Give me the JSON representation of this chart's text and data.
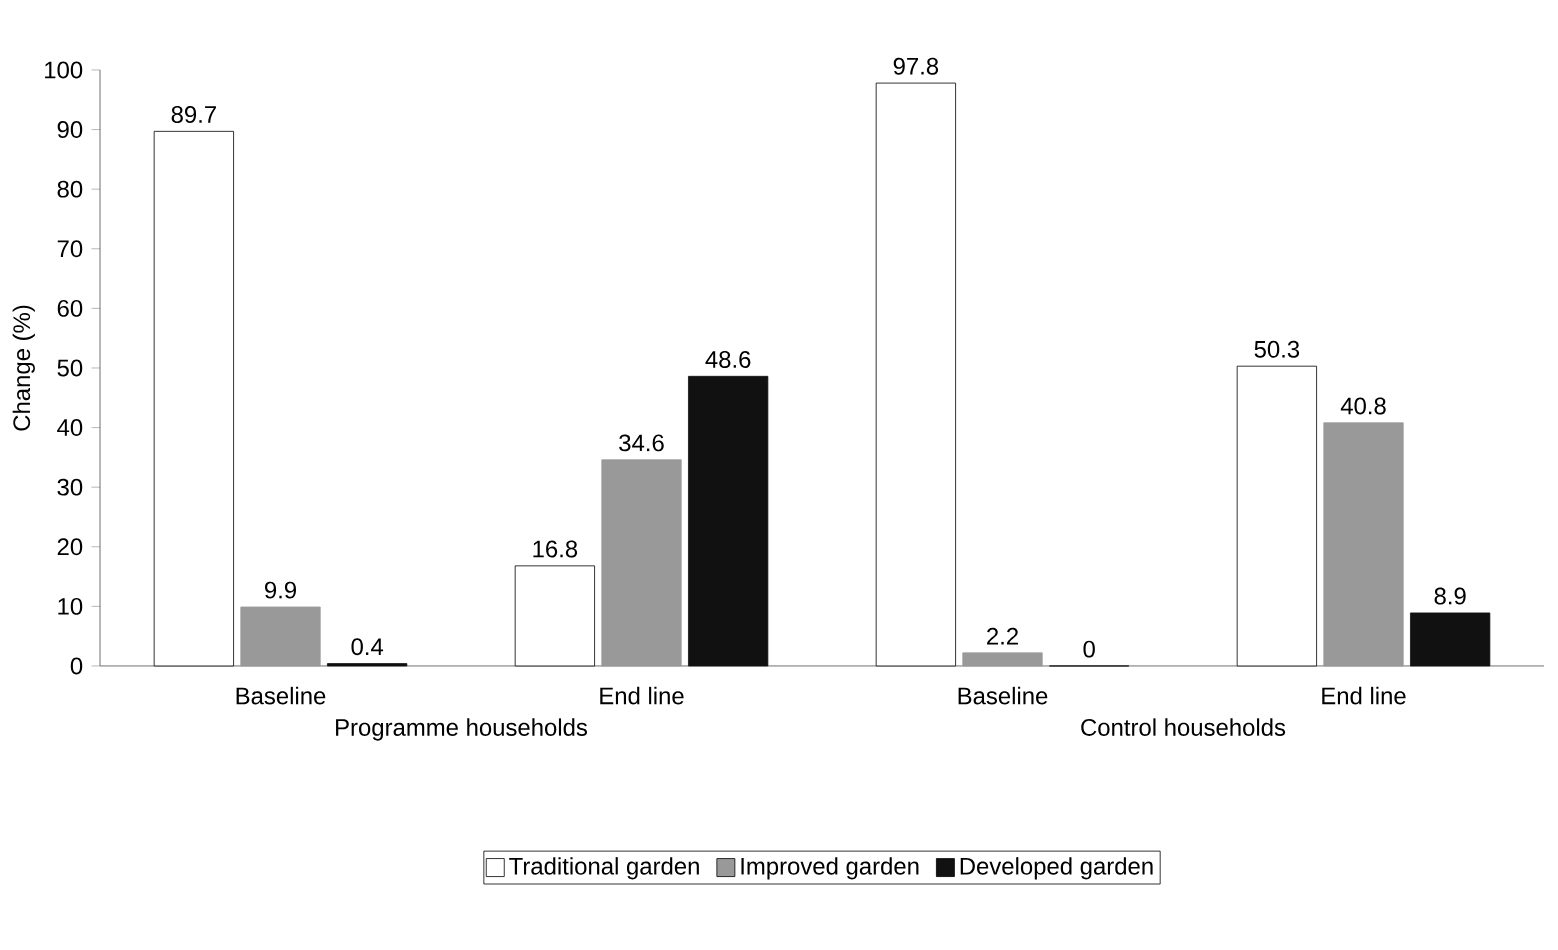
{
  "chart_data": {
    "type": "bar",
    "ylabel": "Change (%)",
    "categories": [
      "Baseline",
      "End line",
      "Baseline",
      "End line"
    ],
    "series": [
      {
        "name": "Traditional garden",
        "color": "#ffffff",
        "values": [
          89.7,
          16.8,
          97.8,
          50.3
        ]
      },
      {
        "name": "Improved garden",
        "color": "#999999",
        "values": [
          9.9,
          34.6,
          2.2,
          40.8
        ]
      },
      {
        "name": "Developed garden",
        "color": "#111111",
        "values": [
          0.4,
          48.6,
          0,
          8.9
        ]
      }
    ],
    "ylim": [
      0,
      100
    ],
    "yticks": [
      0,
      10,
      20,
      30,
      40,
      50,
      60,
      70,
      80,
      90,
      100
    ],
    "data_labels": true,
    "legend": "bottom",
    "annotations": [
      "Programme households",
      "Control households"
    ]
  }
}
